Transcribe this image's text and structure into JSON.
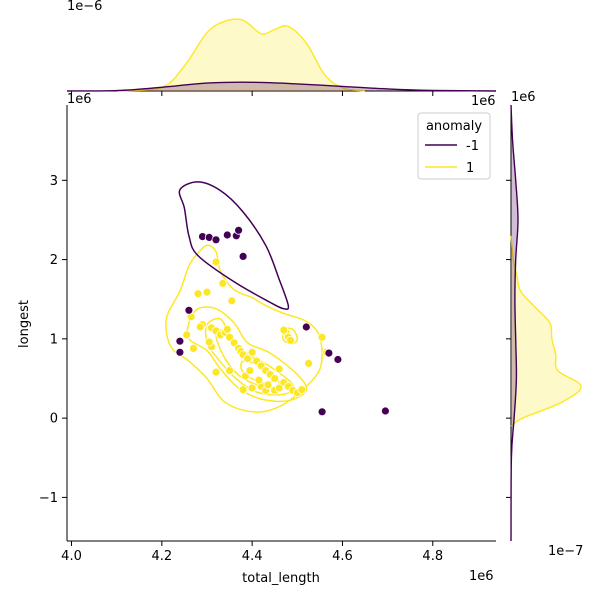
{
  "chart_data": {
    "type": "scatter",
    "title": "",
    "xlabel": "total_length",
    "ylabel": "longest",
    "x_multiplier": "1e6",
    "y_multiplier": "1e6",
    "top_marginal_multiplier": "1e−6",
    "right_marginal_multiplier": "1e−7",
    "xlim": [
      3.99,
      4.94
    ],
    "ylim": [
      -1.55,
      3.95
    ],
    "x_ticks": [
      4.0,
      4.2,
      4.4,
      4.6,
      4.8
    ],
    "y_ticks": [
      -1,
      0,
      1,
      2,
      3
    ],
    "grid": false,
    "legend": {
      "title": "anomaly",
      "placement": "top-right",
      "entries": [
        {
          "label": "-1",
          "color": "#440154"
        },
        {
          "label": "1",
          "color": "#fde725"
        }
      ]
    },
    "series": [
      {
        "name": "-1",
        "color": "#440154",
        "points": [
          [
            4.29,
            2.29
          ],
          [
            4.305,
            2.28
          ],
          [
            4.32,
            2.25
          ],
          [
            4.345,
            2.31
          ],
          [
            4.365,
            2.3
          ],
          [
            4.37,
            2.37
          ],
          [
            4.38,
            2.04
          ],
          [
            4.26,
            1.36
          ],
          [
            4.24,
            0.97
          ],
          [
            4.24,
            0.83
          ],
          [
            4.52,
            1.15
          ],
          [
            4.57,
            0.82
          ],
          [
            4.59,
            0.74
          ],
          [
            4.555,
            0.08
          ],
          [
            4.695,
            0.09
          ]
        ]
      },
      {
        "name": "1",
        "color": "#fde725",
        "points": [
          [
            4.32,
            1.97
          ],
          [
            4.335,
            1.7
          ],
          [
            4.355,
            1.48
          ],
          [
            4.28,
            1.57
          ],
          [
            4.3,
            1.59
          ],
          [
            4.265,
            1.28
          ],
          [
            4.29,
            1.18
          ],
          [
            4.285,
            1.15
          ],
          [
            4.31,
            1.14
          ],
          [
            4.32,
            1.1
          ],
          [
            4.33,
            1.05
          ],
          [
            4.34,
            1.08
          ],
          [
            4.345,
            1.12
          ],
          [
            4.35,
            1.02
          ],
          [
            4.36,
            0.95
          ],
          [
            4.37,
            0.88
          ],
          [
            4.375,
            0.84
          ],
          [
            4.38,
            0.8
          ],
          [
            4.39,
            0.75
          ],
          [
            4.4,
            0.83
          ],
          [
            4.41,
            0.72
          ],
          [
            4.42,
            0.66
          ],
          [
            4.43,
            0.6
          ],
          [
            4.44,
            0.55
          ],
          [
            4.45,
            0.5
          ],
          [
            4.46,
            0.62
          ],
          [
            4.47,
            0.45
          ],
          [
            4.48,
            0.4
          ],
          [
            4.49,
            0.35
          ],
          [
            4.5,
            0.32
          ],
          [
            4.51,
            0.36
          ],
          [
            4.525,
            0.69
          ],
          [
            4.555,
            1.02
          ],
          [
            4.565,
            0.83
          ],
          [
            4.42,
            0.4
          ],
          [
            4.43,
            0.35
          ],
          [
            4.38,
            0.36
          ],
          [
            4.4,
            0.38
          ],
          [
            4.385,
            0.53
          ],
          [
            4.35,
            0.6
          ],
          [
            4.32,
            0.58
          ],
          [
            4.31,
            0.9
          ],
          [
            4.305,
            0.96
          ],
          [
            4.27,
            0.88
          ],
          [
            4.255,
            1.05
          ],
          [
            4.475,
            1.08
          ],
          [
            4.48,
            1.02
          ],
          [
            4.485,
            0.98
          ],
          [
            4.47,
            1.11
          ],
          [
            4.395,
            0.6
          ],
          [
            4.415,
            0.48
          ],
          [
            4.435,
            0.42
          ],
          [
            4.45,
            0.35
          ],
          [
            4.46,
            0.38
          ]
        ]
      }
    ],
    "density_contours": {
      "-1": [
        [
          [
            4.25,
            2.65
          ],
          [
            4.24,
            2.88
          ],
          [
            4.28,
            2.98
          ],
          [
            4.33,
            2.87
          ],
          [
            4.38,
            2.6
          ],
          [
            4.43,
            2.18
          ],
          [
            4.46,
            1.75
          ],
          [
            4.48,
            1.42
          ],
          [
            4.47,
            1.38
          ],
          [
            4.44,
            1.46
          ],
          [
            4.36,
            1.72
          ],
          [
            4.28,
            2.05
          ],
          [
            4.26,
            2.3
          ],
          [
            4.25,
            2.65
          ]
        ]
      ],
      "1": [
        [
          [
            4.21,
            1.25
          ],
          [
            4.24,
            1.6
          ],
          [
            4.26,
            1.92
          ],
          [
            4.28,
            2.08
          ],
          [
            4.3,
            2.18
          ],
          [
            4.32,
            2.1
          ],
          [
            4.33,
            1.85
          ],
          [
            4.36,
            1.62
          ],
          [
            4.4,
            1.52
          ],
          [
            4.43,
            1.42
          ],
          [
            4.47,
            1.32
          ],
          [
            4.52,
            1.22
          ],
          [
            4.55,
            1.02
          ],
          [
            4.55,
            0.62
          ],
          [
            4.5,
            0.3
          ],
          [
            4.45,
            0.12
          ],
          [
            4.4,
            0.08
          ],
          [
            4.34,
            0.2
          ],
          [
            4.3,
            0.5
          ],
          [
            4.26,
            0.72
          ],
          [
            4.22,
            0.9
          ],
          [
            4.21,
            1.25
          ]
        ],
        [
          [
            4.26,
            1.2
          ],
          [
            4.28,
            1.38
          ],
          [
            4.32,
            1.38
          ],
          [
            4.36,
            1.2
          ],
          [
            4.39,
            0.95
          ],
          [
            4.44,
            0.82
          ],
          [
            4.5,
            0.55
          ],
          [
            4.52,
            0.35
          ],
          [
            4.48,
            0.22
          ],
          [
            4.42,
            0.24
          ],
          [
            4.37,
            0.38
          ],
          [
            4.33,
            0.62
          ],
          [
            4.3,
            0.85
          ],
          [
            4.26,
            1.0
          ],
          [
            4.26,
            1.2
          ]
        ],
        [
          [
            4.3,
            1.18
          ],
          [
            4.33,
            1.25
          ],
          [
            4.35,
            1.05
          ],
          [
            4.38,
            0.85
          ],
          [
            4.44,
            0.65
          ],
          [
            4.49,
            0.42
          ],
          [
            4.47,
            0.3
          ],
          [
            4.41,
            0.33
          ],
          [
            4.36,
            0.52
          ],
          [
            4.32,
            0.78
          ],
          [
            4.3,
            0.95
          ],
          [
            4.3,
            1.18
          ]
        ],
        [
          [
            4.32,
            1.05
          ],
          [
            4.34,
            1.1
          ],
          [
            4.37,
            0.9
          ],
          [
            4.42,
            0.68
          ],
          [
            4.46,
            0.45
          ],
          [
            4.44,
            0.38
          ],
          [
            4.38,
            0.5
          ],
          [
            4.34,
            0.75
          ],
          [
            4.32,
            1.05
          ]
        ],
        [
          [
            4.47,
            1.12
          ],
          [
            4.49,
            1.12
          ],
          [
            4.5,
            1.0
          ],
          [
            4.49,
            0.94
          ],
          [
            4.47,
            0.98
          ],
          [
            4.47,
            1.12
          ]
        ],
        [
          [
            4.38,
            0.72
          ],
          [
            4.42,
            0.65
          ],
          [
            4.45,
            0.5
          ],
          [
            4.42,
            0.45
          ],
          [
            4.38,
            0.58
          ],
          [
            4.38,
            0.72
          ]
        ]
      ]
    },
    "marginal_x": {
      "-1": {
        "x": [
          3.99,
          4.1,
          4.2,
          4.3,
          4.4,
          4.5,
          4.6,
          4.7,
          4.8,
          4.94
        ],
        "density": [
          0.0,
          0.02,
          0.18,
          0.38,
          0.42,
          0.34,
          0.22,
          0.1,
          0.03,
          0.0
        ]
      },
      "1": {
        "x": [
          4.1,
          4.2,
          4.25,
          4.3,
          4.34,
          4.38,
          4.42,
          4.45,
          4.48,
          4.52,
          4.56,
          4.6,
          4.65
        ],
        "density": [
          0.0,
          0.18,
          1.2,
          2.8,
          3.35,
          3.4,
          2.75,
          2.95,
          3.1,
          2.3,
          0.8,
          0.15,
          0.0
        ]
      }
    },
    "marginal_y": {
      "-1": {
        "y": [
          -1.55,
          -0.5,
          0.0,
          0.5,
          1.0,
          1.5,
          2.0,
          2.5,
          3.0,
          3.5,
          3.95
        ],
        "density": [
          0.0,
          0.01,
          0.08,
          0.14,
          0.12,
          0.1,
          0.12,
          0.18,
          0.12,
          0.04,
          0.0
        ]
      },
      "1": {
        "y": [
          -0.1,
          0.0,
          0.2,
          0.4,
          0.6,
          0.8,
          1.0,
          1.2,
          1.4,
          1.6,
          1.8,
          2.0,
          2.3
        ],
        "density": [
          0.0,
          0.3,
          1.3,
          1.8,
          1.2,
          1.15,
          1.05,
          1.0,
          0.62,
          0.25,
          0.15,
          0.06,
          0.0
        ]
      }
    }
  }
}
